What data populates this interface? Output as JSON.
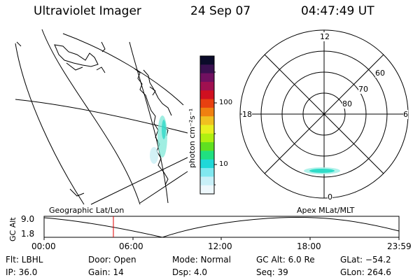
{
  "header": {
    "instrument": "Ultraviolet Imager",
    "date": "24 Sep 07",
    "time": "04:47:49 UT"
  },
  "colorbar": {
    "unit_label": "photon cm⁻²s⁻¹",
    "ticks": [
      "100",
      "10"
    ],
    "colors": [
      "#0b0b2a",
      "#3a1050",
      "#701060",
      "#a01050",
      "#d01020",
      "#e84010",
      "#f08010",
      "#f0c020",
      "#e8f020",
      "#b0f010",
      "#60e020",
      "#20e080",
      "#20d8d8",
      "#80e8f0",
      "#c8f0f8",
      "#eef8fc"
    ]
  },
  "geo_panel": {
    "label": "Geographic Lat/Lon"
  },
  "polar_panel": {
    "label": "Apex MLat/MLT",
    "mlt_labels": [
      "12",
      "18",
      "6",
      "0"
    ],
    "lat_labels": [
      "60",
      "70",
      "80"
    ]
  },
  "altitude_plot": {
    "ylabel": "GC Alt",
    "yticks": [
      "9.0",
      "1.8"
    ],
    "xticks": [
      "00:00",
      "06:00",
      "12:00",
      "18:00",
      "23:59"
    ]
  },
  "info": {
    "filter": "Flt: LBHL",
    "door": "Door: Open",
    "mode": "Mode: Normal",
    "gc_alt": "GC Alt: 6.0 Re",
    "glat": "GLat: −54.2",
    "ip": "IP: 36.0",
    "gain": "Gain: 14",
    "dsp": "Dsp:    4.0",
    "seq": "Seq: 39",
    "glon": "GLon: 264.6"
  },
  "colors": {
    "cursor": "#e00000",
    "aurora": "#40e0c0"
  }
}
